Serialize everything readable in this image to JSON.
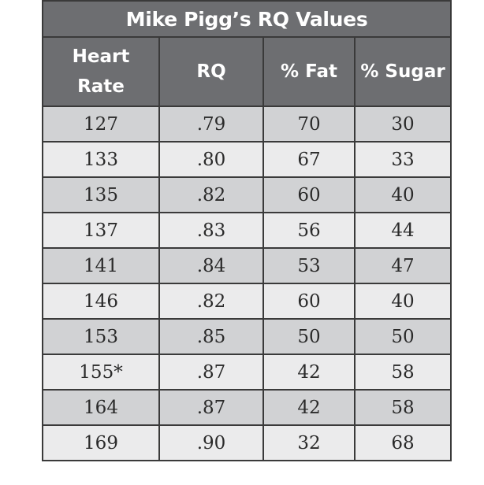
{
  "table": {
    "title": "Mike Pigg’s RQ Values",
    "headers": {
      "heart_rate_line1": "Heart",
      "heart_rate_line2": "Rate",
      "rq": "RQ",
      "fat": "% Fat",
      "sugar": "% Sugar"
    },
    "rows": [
      {
        "heart_rate": "127",
        "rq": ".79",
        "fat": "70",
        "sugar": "30"
      },
      {
        "heart_rate": "133",
        "rq": ".80",
        "fat": "67",
        "sugar": "33"
      },
      {
        "heart_rate": "135",
        "rq": ".82",
        "fat": "60",
        "sugar": "40"
      },
      {
        "heart_rate": "137",
        "rq": ".83",
        "fat": "56",
        "sugar": "44"
      },
      {
        "heart_rate": "141",
        "rq": ".84",
        "fat": "53",
        "sugar": "47"
      },
      {
        "heart_rate": "146",
        "rq": ".82",
        "fat": "60",
        "sugar": "40"
      },
      {
        "heart_rate": "153",
        "rq": ".85",
        "fat": "50",
        "sugar": "50"
      },
      {
        "heart_rate": "155*",
        "rq": ".87",
        "fat": "42",
        "sugar": "58"
      },
      {
        "heart_rate": "164",
        "rq": ".87",
        "fat": "42",
        "sugar": "58"
      },
      {
        "heart_rate": "169",
        "rq": ".90",
        "fat": "32",
        "sugar": "68"
      }
    ]
  },
  "colors": {
    "header_bg": "#6d6e71",
    "header_text": "#ffffff",
    "row_dark": "#d1d2d4",
    "row_light": "#ebebec",
    "border": "#3a3a3a"
  }
}
